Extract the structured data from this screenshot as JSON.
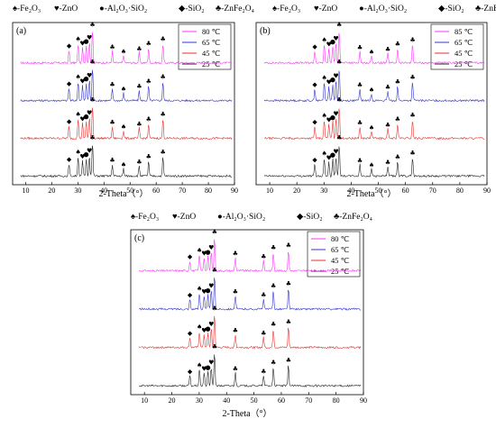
{
  "figure": {
    "phase_legend": [
      {
        "symbol": "♠",
        "label": "-Fe₂O₃"
      },
      {
        "symbol": "♥",
        "label": "-ZnO"
      },
      {
        "symbol": "●",
        "label": "-Al₂O₃·SiO₂"
      },
      {
        "symbol": "◆",
        "label": "-SiO₂"
      },
      {
        "symbol": "♣",
        "label": "-ZnFe₂O₄"
      }
    ]
  },
  "chart_data": [
    {
      "panel": "(a)",
      "type": "line",
      "xlabel": "2-Theta（°）",
      "xlim": [
        5,
        90
      ],
      "xticks": [
        10,
        20,
        30,
        40,
        50,
        60,
        70,
        80,
        90
      ],
      "series": [
        {
          "name": "80 ℃",
          "color": "#ff33ff"
        },
        {
          "name": "65 ℃",
          "color": "#3333cc"
        },
        {
          "name": "45 ℃",
          "color": "#e8322e"
        },
        {
          "name": "25 ℃",
          "color": "#222222"
        }
      ],
      "peaks": [
        {
          "x": 26.6,
          "h": 0.38,
          "marker": "◆"
        },
        {
          "x": 30.1,
          "h": 0.58,
          "marker": "♠"
        },
        {
          "x": 31.8,
          "h": 0.45,
          "marker": "♥"
        },
        {
          "x": 33.2,
          "h": 0.52,
          "marker": "●"
        },
        {
          "x": 34.4,
          "h": 0.62,
          "marker": "♥"
        },
        {
          "x": 35.6,
          "h": 1.0,
          "marker": "♣"
        },
        {
          "x": 43.2,
          "h": 0.35,
          "marker": "♣"
        },
        {
          "x": 47.5,
          "h": 0.22,
          "marker": "♠"
        },
        {
          "x": 53.5,
          "h": 0.3,
          "marker": "♣"
        },
        {
          "x": 57.1,
          "h": 0.45,
          "marker": "♣"
        },
        {
          "x": 62.6,
          "h": 0.58,
          "marker": "♣"
        }
      ]
    },
    {
      "panel": "(b)",
      "type": "line",
      "xlabel": "2-Theta（°）",
      "xlim": [
        5,
        90
      ],
      "xticks": [
        10,
        20,
        30,
        40,
        50,
        60,
        70,
        80,
        90
      ],
      "series": [
        {
          "name": "85 ℃",
          "color": "#ff33ff"
        },
        {
          "name": "65 ℃",
          "color": "#3333cc"
        },
        {
          "name": "45 ℃",
          "color": "#e8322e"
        },
        {
          "name": "25 ℃",
          "color": "#222222"
        }
      ],
      "peaks": [
        {
          "x": 26.6,
          "h": 0.36,
          "marker": "◆"
        },
        {
          "x": 30.1,
          "h": 0.55,
          "marker": "♠"
        },
        {
          "x": 31.8,
          "h": 0.42,
          "marker": "♥"
        },
        {
          "x": 33.2,
          "h": 0.5,
          "marker": "●"
        },
        {
          "x": 34.4,
          "h": 0.6,
          "marker": "♥"
        },
        {
          "x": 35.6,
          "h": 1.0,
          "marker": "♣"
        },
        {
          "x": 43.2,
          "h": 0.34,
          "marker": "♣"
        },
        {
          "x": 47.5,
          "h": 0.2,
          "marker": "♠"
        },
        {
          "x": 53.5,
          "h": 0.28,
          "marker": "♣"
        },
        {
          "x": 57.1,
          "h": 0.44,
          "marker": "♣"
        },
        {
          "x": 62.6,
          "h": 0.56,
          "marker": "♣"
        }
      ]
    },
    {
      "panel": "(c)",
      "type": "line",
      "xlabel": "2-Theta（°）",
      "xlim": [
        5,
        90
      ],
      "xticks": [
        10,
        20,
        30,
        40,
        50,
        60,
        70,
        80,
        90
      ],
      "series": [
        {
          "name": "80 ℃",
          "color": "#ff33ff"
        },
        {
          "name": "65 ℃",
          "color": "#3333cc"
        },
        {
          "name": "45 ℃",
          "color": "#e8322e"
        },
        {
          "name": "25 ℃",
          "color": "#222222"
        }
      ],
      "peaks": [
        {
          "x": 26.6,
          "h": 0.3,
          "marker": "◆"
        },
        {
          "x": 30.1,
          "h": 0.48,
          "marker": "♠"
        },
        {
          "x": 31.8,
          "h": 0.38,
          "marker": "♥"
        },
        {
          "x": 33.2,
          "h": 0.42,
          "marker": "●"
        },
        {
          "x": 34.4,
          "h": 0.55,
          "marker": "♥"
        },
        {
          "x": 35.6,
          "h": 1.0,
          "marker": "♣"
        },
        {
          "x": 43.2,
          "h": 0.38,
          "marker": "♣"
        },
        {
          "x": 53.5,
          "h": 0.3,
          "marker": "♣"
        },
        {
          "x": 57.1,
          "h": 0.55,
          "marker": "♣"
        },
        {
          "x": 62.6,
          "h": 0.62,
          "marker": "♣"
        }
      ]
    }
  ]
}
